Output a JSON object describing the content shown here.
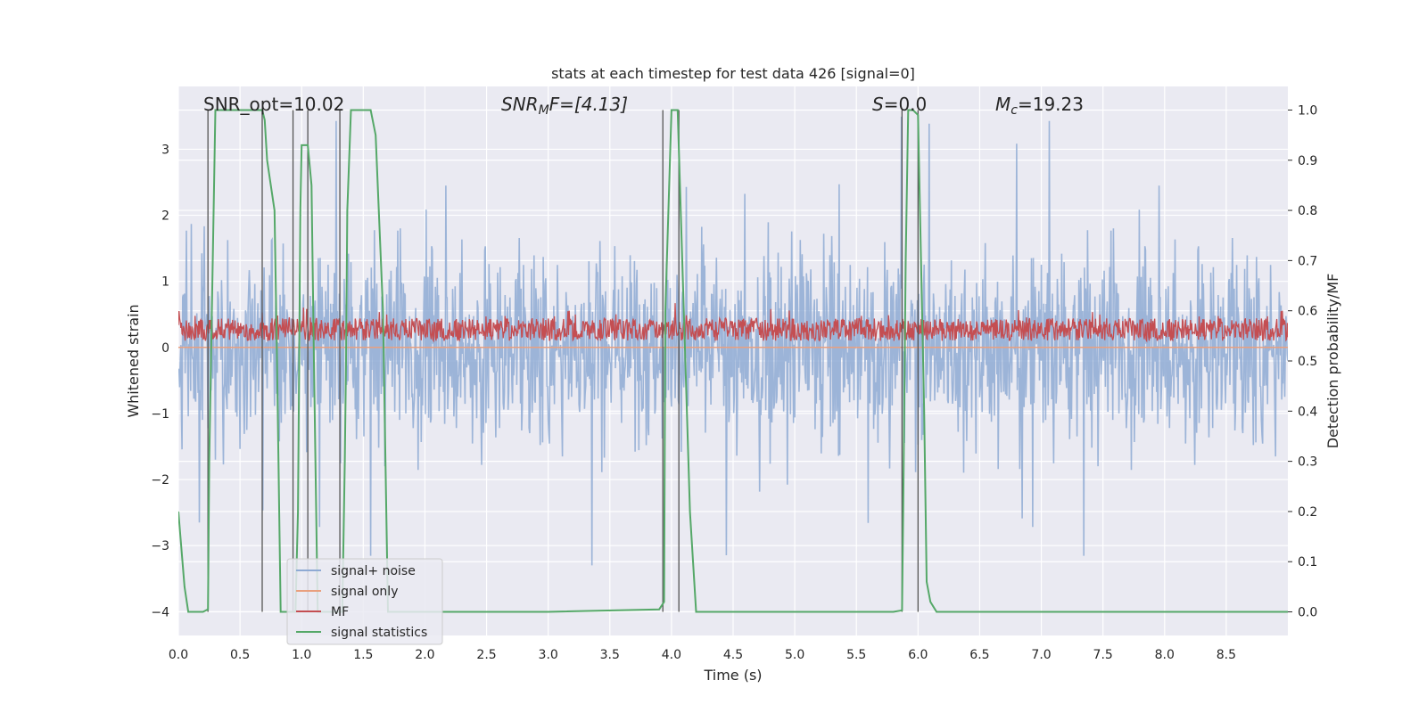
{
  "chart_data": {
    "type": "line",
    "title": "stats at each timestep for test data 426 [signal=0]",
    "xlabel": "Time (s)",
    "ylabel_left": "Whitened strain",
    "ylabel_right": "Detection probability/MF",
    "xlim": [
      0.0,
      9.0
    ],
    "ylim_left": [
      -4.36,
      3.95
    ],
    "ylim_right": [
      -0.047,
      1.047
    ],
    "xticks": [
      "0.0",
      "0.5",
      "1.0",
      "1.5",
      "2.0",
      "2.5",
      "3.0",
      "3.5",
      "4.0",
      "4.5",
      "5.0",
      "5.5",
      "6.0",
      "6.5",
      "7.0",
      "7.5",
      "8.0",
      "8.5"
    ],
    "xtick_values": [
      0.0,
      0.5,
      1.0,
      1.5,
      2.0,
      2.5,
      3.0,
      3.5,
      4.0,
      4.5,
      5.0,
      5.5,
      6.0,
      6.5,
      7.0,
      7.5,
      8.0,
      8.5
    ],
    "yticks_left": [
      "−4",
      "−3",
      "−2",
      "−1",
      "0",
      "1",
      "2",
      "3"
    ],
    "ytick_values_left": [
      -4,
      -3,
      -2,
      -1,
      0,
      1,
      2,
      3
    ],
    "yticks_right": [
      "0.0",
      "0.1",
      "0.2",
      "0.3",
      "0.4",
      "0.5",
      "0.6",
      "0.7",
      "0.8",
      "0.9",
      "1.0"
    ],
    "ytick_values_right": [
      0.0,
      0.1,
      0.2,
      0.3,
      0.4,
      0.5,
      0.6,
      0.7,
      0.8,
      0.9,
      1.0
    ],
    "annotations": {
      "snr_opt": "SNR_opt=10.02",
      "snr_mf_base": "SNR",
      "snr_mf_sub": "M",
      "snr_mf_rest": "F=[4.13]",
      "s_base": "S",
      "s_rest": "=0.0",
      "mc_base": "M",
      "mc_sub": "c",
      "mc_rest": "=19.23"
    },
    "legend": {
      "location": "lower-left",
      "entries": [
        {
          "label": "signal+ noise",
          "color": "#8eaad4"
        },
        {
          "label": "signal only",
          "color": "#e9a07f"
        },
        {
          "label": "MF",
          "color": "#c44e52"
        },
        {
          "label": "signal statistics",
          "color": "#55a868"
        }
      ]
    },
    "series": [
      {
        "name": "signal statistics",
        "axis": "right",
        "color": "#55a868",
        "x": [
          0.0,
          0.05,
          0.08,
          0.2,
          0.24,
          0.25,
          0.3,
          0.5,
          0.68,
          0.7,
          0.72,
          0.78,
          0.8,
          0.83,
          0.9,
          0.95,
          0.97,
          0.99,
          1.0,
          1.05,
          1.08,
          1.1,
          1.13,
          1.2,
          1.3,
          1.33,
          1.35,
          1.36,
          1.37,
          1.4,
          1.45,
          1.56,
          1.6,
          1.66,
          1.7,
          2.0,
          3.0,
          3.9,
          3.94,
          3.95,
          4.0,
          4.05,
          4.1,
          4.15,
          4.2,
          4.5,
          5.0,
          5.8,
          5.87,
          5.88,
          5.9,
          5.92,
          5.94,
          5.96,
          6.0,
          6.05,
          6.07,
          6.1,
          6.15,
          7.0,
          8.0,
          9.0
        ],
        "y": [
          0.2,
          0.05,
          0.0,
          0.0,
          0.005,
          0.3,
          1.0,
          1.0,
          1.0,
          0.98,
          0.9,
          0.8,
          0.5,
          0.0,
          0.0,
          0.0,
          0.2,
          0.8,
          0.93,
          0.93,
          0.85,
          0.5,
          0.0,
          0.0,
          0.0,
          0.0,
          0.3,
          0.5,
          0.8,
          1.0,
          1.0,
          1.0,
          0.95,
          0.6,
          0.0,
          0.0,
          0.0,
          0.005,
          0.02,
          0.6,
          1.0,
          1.0,
          0.6,
          0.2,
          0.0,
          0.0,
          0.0,
          0.0,
          0.003,
          0.2,
          0.7,
          1.0,
          1.0,
          1.0,
          0.99,
          0.4,
          0.06,
          0.02,
          0.0,
          0.0,
          0.0,
          0.0
        ]
      },
      {
        "name": "vertical markers",
        "axis": "right",
        "color": "#555555",
        "x": [
          0.24,
          0.68,
          0.93,
          1.05,
          1.31,
          3.93,
          4.06,
          5.87,
          6.0
        ],
        "y_top": [
          1.0,
          1.0,
          1.0,
          1.0,
          1.0,
          1.0,
          1.0,
          1.0,
          1.0
        ]
      }
    ]
  }
}
